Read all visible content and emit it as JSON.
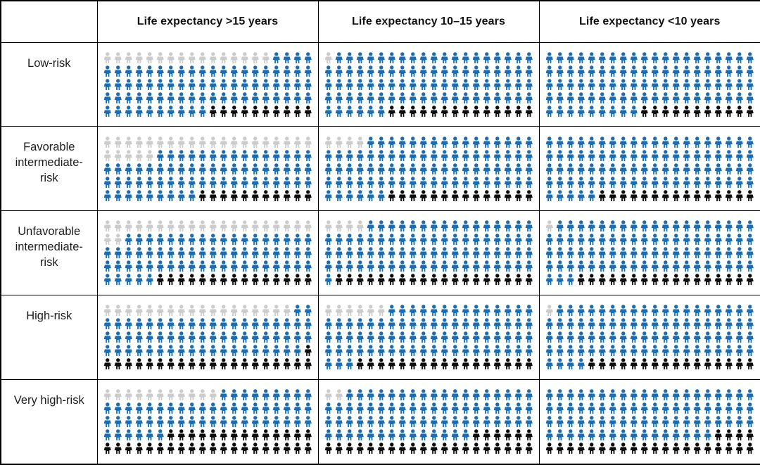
{
  "chart_data": {
    "type": "waffle_pictogram",
    "title": "",
    "icons_per_cell": 100,
    "icons_per_grid_row": 20,
    "grid_rows_per_cell": 5,
    "fill_order": [
      "gray",
      "blue",
      "black"
    ],
    "colors": {
      "gray": "#cccccc",
      "blue": "#1a6cb3",
      "black": "#0d0d0d"
    },
    "corner_label": "",
    "columns": [
      "Life expectancy >15 years",
      "Life expectancy 10–15 years",
      "Life expectancy <10 years"
    ],
    "row_labels": [
      "Low-risk",
      "Favorable intermediate-risk",
      "Unfavorable intermediate-risk",
      "High-risk",
      "Very high-risk"
    ],
    "cells": [
      [
        {
          "gray": 16,
          "blue": 74,
          "black": 10
        },
        {
          "gray": 1,
          "blue": 85,
          "black": 14
        },
        {
          "gray": 0,
          "blue": 89,
          "black": 11
        }
      ],
      [
        {
          "gray": 25,
          "blue": 64,
          "black": 11
        },
        {
          "gray": 4,
          "blue": 82,
          "black": 14
        },
        {
          "gray": 0,
          "blue": 85,
          "black": 15
        }
      ],
      [
        {
          "gray": 22,
          "blue": 63,
          "black": 15
        },
        {
          "gray": 4,
          "blue": 77,
          "black": 19
        },
        {
          "gray": 1,
          "blue": 82,
          "black": 17
        }
      ],
      [
        {
          "gray": 18,
          "blue": 61,
          "black": 21
        },
        {
          "gray": 6,
          "blue": 77,
          "black": 17
        },
        {
          "gray": 1,
          "blue": 83,
          "black": 16
        }
      ],
      [
        {
          "gray": 11,
          "blue": 55,
          "black": 34
        },
        {
          "gray": 2,
          "blue": 72,
          "black": 26
        },
        {
          "gray": 0,
          "blue": 76,
          "black": 24
        }
      ]
    ]
  }
}
